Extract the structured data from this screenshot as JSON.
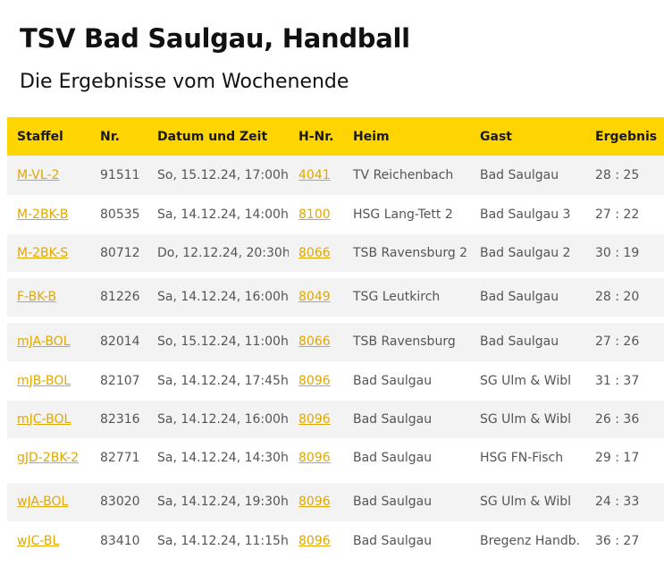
{
  "page": {
    "title": "TSV Bad Saulgau, Handball",
    "subtitle": "Die Ergebnisse vom Wochenende"
  },
  "colors": {
    "header_bg": "#ffd500",
    "link": "#e0a800",
    "row_alt": "#f3f3f3"
  },
  "table": {
    "headers": [
      "Staffel",
      "Nr.",
      "Datum und Zeit",
      "H-Nr.",
      "Heim",
      "Gast",
      "Ergebnis"
    ],
    "rows": [
      {
        "staffel": "M-VL-2",
        "nr": "91511",
        "datum": "So, 15.12.24, 17:00h",
        "hnr": "4041",
        "heim": "TV Reichenbach",
        "gast": "Bad Saulgau",
        "ergebnis": "28 : 25"
      },
      {
        "staffel": "M-2BK-B",
        "nr": "80535",
        "datum": "Sa, 14.12.24, 14:00h",
        "hnr": "8100",
        "heim": "HSG Lang-Tett 2",
        "gast": "Bad Saulgau 3",
        "ergebnis": "27 : 22"
      },
      {
        "staffel": "M-2BK-S",
        "nr": "80712",
        "datum": "Do, 12.12.24, 20:30h",
        "hnr": "8066",
        "heim": "TSB Ravensburg 2",
        "gast": "Bad Saulgau 2",
        "ergebnis": "30 : 19"
      },
      {
        "staffel": "F-BK-B",
        "nr": "81226",
        "datum": "Sa, 14.12.24, 16:00h",
        "hnr": "8049",
        "heim": "TSG Leutkirch",
        "gast": "Bad Saulgau",
        "ergebnis": "28 : 20"
      },
      {
        "staffel": "mJA-BOL",
        "nr": "82014",
        "datum": "So, 15.12.24, 11:00h",
        "hnr": "8066",
        "heim": "TSB Ravensburg",
        "gast": "Bad Saulgau",
        "ergebnis": "27 : 26"
      },
      {
        "staffel": "mJB-BOL",
        "nr": "82107",
        "datum": "Sa, 14.12.24, 17:45h",
        "hnr": "8096",
        "heim": "Bad Saulgau",
        "gast": "SG Ulm & Wibl",
        "ergebnis": "31 : 37"
      },
      {
        "staffel": "mJC-BOL",
        "nr": "82316",
        "datum": "Sa, 14.12.24, 16:00h",
        "hnr": "8096",
        "heim": "Bad Saulgau",
        "gast": "SG Ulm & Wibl",
        "ergebnis": "26 : 36"
      },
      {
        "staffel": "gJD-2BK-2",
        "nr": "82771",
        "datum": "Sa, 14.12.24, 14:30h",
        "hnr": "8096",
        "heim": "Bad Saulgau",
        "gast": "HSG FN-Fisch",
        "ergebnis": "29 : 17"
      },
      {
        "staffel": "wJA-BOL",
        "nr": "83020",
        "datum": "Sa, 14.12.24, 19:30h",
        "hnr": "8096",
        "heim": "Bad Saulgau",
        "gast": "SG Ulm & Wibl",
        "ergebnis": "24 : 33"
      },
      {
        "staffel": "wJC-BL",
        "nr": "83410",
        "datum": "Sa, 14.12.24, 11:15h",
        "hnr": "8096",
        "heim": "Bad Saulgau",
        "gast": "Bregenz Handb.",
        "ergebnis": "36 : 27"
      }
    ]
  }
}
